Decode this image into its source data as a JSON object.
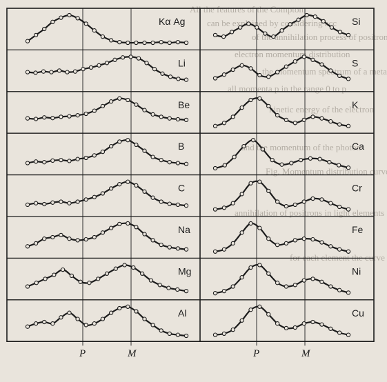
{
  "background_text": [
    "All the features of the Compton",
    "can be explained by considering acc",
    "of the annihilation process of positrons",
    "electron momentum distribution",
    "the momentum spectrum of a metal",
    "all momenta p in the range 0 to p",
    "kinetic energy of the electron",
    "and the momentum of the photon",
    "Fig. Momentum distribution curves",
    "annihilation of positrons in light elements",
    "for each element the curve is broader"
  ],
  "colors": {
    "ink": "#1c1c1c",
    "paper": "#e9e4dc",
    "faint_text": "#b4aea5"
  },
  "chart_data": {
    "type": "line",
    "x_ticks": [
      "P",
      "M"
    ],
    "grid": true,
    "markers": "open-circle",
    "panels_left": [
      {
        "name": "Kα Ag",
        "y": [
          0.15,
          0.35,
          0.55,
          0.78,
          0.92,
          1.0,
          0.9,
          0.72,
          0.5,
          0.3,
          0.18,
          0.12,
          0.1,
          0.1,
          0.1,
          0.1,
          0.12,
          0.1,
          0.12,
          0.1
        ]
      },
      {
        "name": "Li",
        "y": [
          0.5,
          0.48,
          0.52,
          0.5,
          0.55,
          0.5,
          0.52,
          0.6,
          0.65,
          0.72,
          0.8,
          0.9,
          0.98,
          1.0,
          0.95,
          0.8,
          0.6,
          0.45,
          0.35,
          0.28,
          0.25
        ]
      },
      {
        "name": "Be",
        "y": [
          0.35,
          0.33,
          0.38,
          0.36,
          0.4,
          0.42,
          0.45,
          0.5,
          0.6,
          0.75,
          0.9,
          1.0,
          0.95,
          0.8,
          0.62,
          0.48,
          0.4,
          0.35,
          0.32,
          0.3
        ]
      },
      {
        "name": "B",
        "y": [
          0.25,
          0.3,
          0.28,
          0.33,
          0.35,
          0.32,
          0.38,
          0.42,
          0.5,
          0.62,
          0.8,
          0.95,
          1.0,
          0.85,
          0.65,
          0.45,
          0.35,
          0.28,
          0.25,
          0.22
        ]
      },
      {
        "name": "C",
        "y": [
          0.25,
          0.3,
          0.27,
          0.32,
          0.35,
          0.3,
          0.35,
          0.42,
          0.5,
          0.62,
          0.78,
          0.92,
          1.0,
          0.88,
          0.68,
          0.48,
          0.35,
          0.28,
          0.25,
          0.22
        ]
      },
      {
        "name": "Na",
        "y": [
          0.25,
          0.35,
          0.5,
          0.55,
          0.62,
          0.5,
          0.45,
          0.48,
          0.55,
          0.7,
          0.85,
          0.98,
          1.0,
          0.88,
          0.65,
          0.45,
          0.3,
          0.22,
          0.18,
          0.15
        ]
      },
      {
        "name": "Mg",
        "y": [
          0.3,
          0.42,
          0.55,
          0.68,
          0.85,
          0.65,
          0.45,
          0.42,
          0.55,
          0.72,
          0.88,
          1.0,
          0.92,
          0.72,
          0.5,
          0.35,
          0.25,
          0.2,
          0.15
        ]
      },
      {
        "name": "Al",
        "y": [
          0.35,
          0.45,
          0.5,
          0.45,
          0.65,
          0.8,
          0.6,
          0.4,
          0.45,
          0.6,
          0.8,
          0.95,
          1.0,
          0.85,
          0.6,
          0.4,
          0.22,
          0.12,
          0.08,
          0.05
        ]
      }
    ],
    "panels_right": [
      {
        "name": "Si",
        "y": [
          0.35,
          0.3,
          0.45,
          0.6,
          0.72,
          0.6,
          0.4,
          0.3,
          0.5,
          0.7,
          0.85,
          1.0,
          0.95,
          0.8,
          0.6,
          0.45,
          0.35
        ]
      },
      {
        "name": "S",
        "y": [
          0.3,
          0.42,
          0.58,
          0.72,
          0.62,
          0.4,
          0.35,
          0.5,
          0.68,
          0.85,
          1.0,
          0.9,
          0.75,
          0.55,
          0.38,
          0.28
        ]
      },
      {
        "name": "K",
        "y": [
          0.1,
          0.2,
          0.4,
          0.7,
          0.95,
          1.0,
          0.75,
          0.45,
          0.3,
          0.2,
          0.3,
          0.4,
          0.35,
          0.25,
          0.15,
          0.1
        ]
      },
      {
        "name": "Ca",
        "y": [
          0.08,
          0.18,
          0.45,
          0.8,
          1.0,
          0.7,
          0.35,
          0.2,
          0.25,
          0.35,
          0.4,
          0.38,
          0.28,
          0.18,
          0.1
        ]
      },
      {
        "name": "Cr",
        "y": [
          0.1,
          0.15,
          0.3,
          0.6,
          0.95,
          1.0,
          0.7,
          0.35,
          0.2,
          0.25,
          0.35,
          0.45,
          0.42,
          0.3,
          0.18,
          0.1
        ]
      },
      {
        "name": "Fe",
        "y": [
          0.08,
          0.15,
          0.35,
          0.7,
          1.0,
          0.85,
          0.5,
          0.3,
          0.35,
          0.45,
          0.5,
          0.48,
          0.38,
          0.25,
          0.15,
          0.08
        ]
      },
      {
        "name": "Ni",
        "y": [
          0.08,
          0.15,
          0.3,
          0.6,
          0.92,
          1.0,
          0.72,
          0.42,
          0.3,
          0.35,
          0.5,
          0.55,
          0.45,
          0.3,
          0.18,
          0.1
        ]
      },
      {
        "name": "Cu",
        "y": [
          0.08,
          0.12,
          0.25,
          0.55,
          0.9,
          1.0,
          0.75,
          0.45,
          0.3,
          0.32,
          0.45,
          0.5,
          0.42,
          0.28,
          0.15,
          0.08
        ]
      }
    ]
  }
}
